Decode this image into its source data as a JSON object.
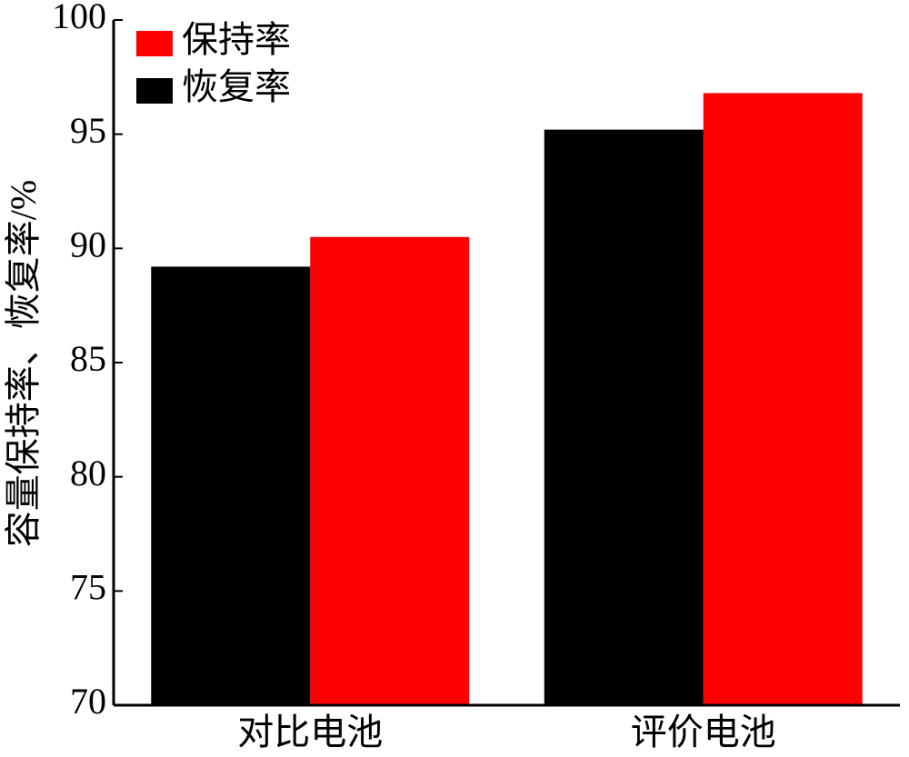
{
  "chart_data": {
    "type": "bar",
    "y_label": "容量保持率、恢复率/%",
    "categories": [
      "对比电池",
      "评价电池"
    ],
    "series": [
      {
        "name": "保持率",
        "color": "#ff0000",
        "values": [
          90.5,
          96.8
        ]
      },
      {
        "name": "恢复率",
        "color": "#000000",
        "values": [
          89.2,
          95.2
        ]
      }
    ],
    "ylim": [
      70,
      100
    ],
    "yticks": [
      70,
      75,
      80,
      85,
      90,
      95,
      100
    ],
    "grid": false
  }
}
